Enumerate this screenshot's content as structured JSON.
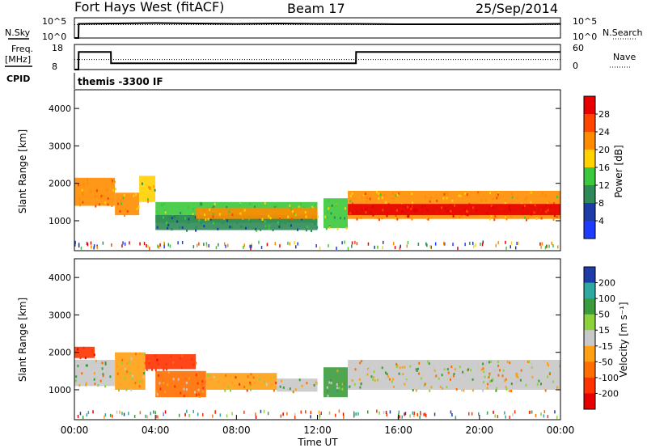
{
  "header": {
    "station": "Fort Hays West (fitACF)",
    "beam": "Beam 17",
    "date": "25/Sep/2014"
  },
  "top_panels": {
    "nsky_label": "N.Sky",
    "nsky_ticks": [
      "10^5",
      "10^0"
    ],
    "nsearch_label": "N.Search",
    "nsearch_ticks": [
      "10^5",
      "10^0"
    ],
    "freq_label": "Freq.",
    "freq_unit": "[MHz]",
    "freq_ticks": [
      "18",
      "8"
    ],
    "nave_label": "Nave",
    "nave_ticks": [
      "60",
      "0"
    ],
    "cpid_label": "CPID",
    "cpid_text": "themis -3300 IF"
  },
  "colors": {
    "power": [
      "#1e3cff",
      "#1e3ca8",
      "#2e8b57",
      "#3cc83c",
      "#ffd200",
      "#ff8c00",
      "#ff4500",
      "#e60000"
    ],
    "velocity": [
      "#1e3ca8",
      "#2ea8a0",
      "#3c9c3c",
      "#8cd23c",
      "#c8c8c8",
      "#ffa014",
      "#ff6e00",
      "#ff3200",
      "#e60000"
    ],
    "ground": "#b4b4b4"
  },
  "chart_data": [
    {
      "type": "line",
      "title": "N.Sky / N.Search",
      "x_range_hours": [
        0,
        24
      ],
      "ylim_log10": [
        0,
        5
      ],
      "series": [
        {
          "name": "N.Sky",
          "style": "solid",
          "x": [
            0.0,
            0.2,
            0.21,
            2,
            4,
            6,
            8,
            10,
            12,
            14,
            16,
            18,
            20,
            22,
            24
          ],
          "y": [
            0,
            0,
            3.5,
            3.6,
            3.7,
            3.6,
            3.5,
            3.6,
            3.5,
            3.5,
            3.4,
            3.4,
            3.4,
            3.4,
            3.5
          ]
        },
        {
          "name": "N.Search",
          "style": "dotted",
          "x": [
            0,
            24
          ],
          "y": [
            3.3,
            3.3
          ]
        }
      ]
    },
    {
      "type": "line",
      "title": "Freq. / Nave",
      "x_range_hours": [
        0,
        24
      ],
      "ylim": [
        8,
        18
      ],
      "series": [
        {
          "name": "Freq.",
          "style": "solid",
          "x": [
            0.0,
            0.2,
            0.21,
            1.8,
            1.81,
            13.9,
            13.91,
            24
          ],
          "y": [
            8,
            8,
            15.0,
            15.0,
            10.5,
            10.5,
            15.0,
            15.0
          ]
        },
        {
          "name": "Nave",
          "style": "dotted",
          "x": [
            0,
            24
          ],
          "y": [
            12.0,
            12.0
          ]
        }
      ]
    },
    {
      "type": "heatmap",
      "title": "Power",
      "xlabel": "",
      "ylabel": "Slant Range [km]",
      "x_ticks": [
        "00:00",
        "04:00",
        "08:00",
        "12:00",
        "16:00",
        "20:00",
        "00:00"
      ],
      "ylim": [
        200,
        4500
      ],
      "y_ticks": [
        1000,
        2000,
        3000,
        4000
      ],
      "colorbar": {
        "label": "Power [dB]",
        "ticks": [
          4,
          8,
          12,
          16,
          20,
          24,
          28
        ],
        "range": [
          0,
          30
        ]
      },
      "bands": [
        {
          "x": [
            0.0,
            2.0
          ],
          "y": [
            1400,
            2150
          ],
          "value": 22
        },
        {
          "x": [
            2.0,
            3.2
          ],
          "y": [
            1150,
            1750
          ],
          "value": 20
        },
        {
          "x": [
            3.2,
            4.0
          ],
          "y": [
            1500,
            2200
          ],
          "value": 16
        },
        {
          "x": [
            4.0,
            12.0
          ],
          "y": [
            950,
            1500
          ],
          "value": 14
        },
        {
          "x": [
            4.0,
            12.0
          ],
          "y": [
            750,
            1150
          ],
          "value": 9
        },
        {
          "x": [
            6.0,
            12.0
          ],
          "y": [
            1050,
            1350
          ],
          "value": 19
        },
        {
          "x": [
            12.3,
            13.5
          ],
          "y": [
            800,
            1600
          ],
          "value": 14
        },
        {
          "x": [
            13.5,
            24.0
          ],
          "y": [
            1050,
            1800
          ],
          "value": 20
        },
        {
          "x": [
            13.5,
            24.0
          ],
          "y": [
            1150,
            1450
          ],
          "value": 28
        }
      ]
    },
    {
      "type": "heatmap",
      "title": "Velocity",
      "xlabel": "Time UT",
      "ylabel": "Slant Range [km]",
      "x_ticks": [
        "00:00",
        "04:00",
        "08:00",
        "12:00",
        "16:00",
        "20:00",
        "00:00"
      ],
      "ylim": [
        200,
        4500
      ],
      "y_ticks": [
        1000,
        2000,
        3000,
        4000
      ],
      "colorbar": {
        "label": "Velocity [m s⁻¹]",
        "ticks": [
          200,
          100,
          50,
          15,
          -15,
          -50,
          -100,
          -200
        ],
        "range": [
          -250,
          250
        ]
      },
      "bands": [
        {
          "x": [
            0.0,
            1.0
          ],
          "y": [
            1850,
            2150
          ],
          "value": -200
        },
        {
          "x": [
            0.0,
            2.0
          ],
          "y": [
            1100,
            1800
          ],
          "value": 0
        },
        {
          "x": [
            2.0,
            3.5
          ],
          "y": [
            1000,
            2000
          ],
          "value": -30
        },
        {
          "x": [
            3.5,
            6.0
          ],
          "y": [
            1550,
            1950
          ],
          "value": -120
        },
        {
          "x": [
            4.0,
            6.5
          ],
          "y": [
            800,
            1500
          ],
          "value": -70
        },
        {
          "x": [
            6.5,
            10.0
          ],
          "y": [
            1000,
            1450
          ],
          "value": -30
        },
        {
          "x": [
            10.0,
            12.0
          ],
          "y": [
            950,
            1300
          ],
          "value": 0
        },
        {
          "x": [
            12.3,
            13.5
          ],
          "y": [
            800,
            1600
          ],
          "value": 60
        },
        {
          "x": [
            13.5,
            24.0
          ],
          "y": [
            1000,
            1800
          ],
          "value": 0
        }
      ]
    }
  ]
}
